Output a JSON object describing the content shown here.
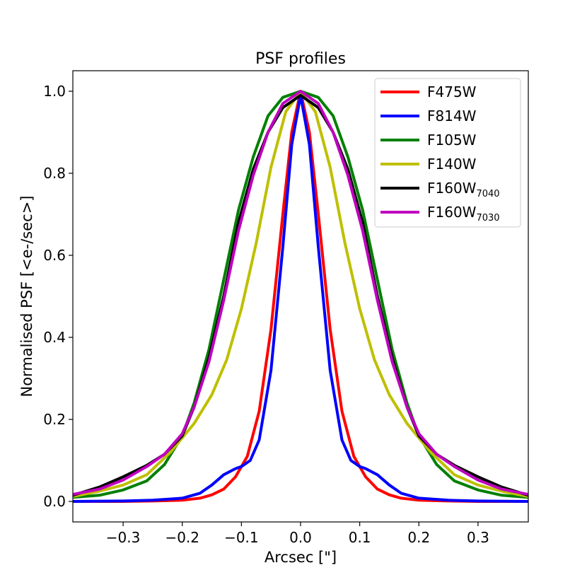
{
  "chart_data": {
    "type": "line",
    "title": "PSF profiles",
    "xlabel": "Arcsec [\"]",
    "ylabel": "Normalised PSF [<e-/sec>]",
    "xlim": [
      -0.385,
      0.385
    ],
    "ylim": [
      -0.05,
      1.05
    ],
    "xticks": [
      -0.3,
      -0.2,
      -0.1,
      0.0,
      0.1,
      0.2,
      0.3
    ],
    "xtick_labels": [
      "−0.3",
      "−0.2",
      "−0.1",
      "0.0",
      "0.1",
      "0.2",
      "0.3"
    ],
    "yticks": [
      0.0,
      0.2,
      0.4,
      0.6,
      0.8,
      1.0
    ],
    "ytick_labels": [
      "0.0",
      "0.2",
      "0.4",
      "0.6",
      "0.8",
      "1.0"
    ],
    "grid": false,
    "legend_position": "top-right",
    "series": [
      {
        "name": "F475W",
        "label_main": "F475W",
        "label_sub": "",
        "color": "#ff0000",
        "x": [
          -0.385,
          -0.3,
          -0.25,
          -0.2,
          -0.17,
          -0.15,
          -0.13,
          -0.11,
          -0.09,
          -0.07,
          -0.05,
          -0.03,
          -0.015,
          0.0,
          0.015,
          0.03,
          0.05,
          0.07,
          0.09,
          0.11,
          0.13,
          0.15,
          0.17,
          0.2,
          0.25,
          0.3,
          0.385
        ],
        "y": [
          0.0,
          0.0,
          0.001,
          0.003,
          0.008,
          0.016,
          0.03,
          0.06,
          0.11,
          0.22,
          0.42,
          0.7,
          0.9,
          1.0,
          0.9,
          0.7,
          0.42,
          0.22,
          0.11,
          0.06,
          0.03,
          0.016,
          0.008,
          0.003,
          0.001,
          0.0,
          0.0
        ]
      },
      {
        "name": "F814W",
        "label_main": "F814W",
        "label_sub": "",
        "color": "#0000ff",
        "x": [
          -0.385,
          -0.3,
          -0.25,
          -0.2,
          -0.17,
          -0.15,
          -0.13,
          -0.11,
          -0.1,
          -0.085,
          -0.07,
          -0.05,
          -0.03,
          -0.015,
          0.0,
          0.015,
          0.03,
          0.05,
          0.07,
          0.085,
          0.1,
          0.11,
          0.13,
          0.15,
          0.17,
          0.2,
          0.25,
          0.3,
          0.385
        ],
        "y": [
          0.0,
          0.001,
          0.003,
          0.008,
          0.02,
          0.04,
          0.065,
          0.08,
          0.085,
          0.1,
          0.15,
          0.32,
          0.62,
          0.87,
          0.99,
          0.87,
          0.62,
          0.32,
          0.15,
          0.1,
          0.085,
          0.08,
          0.065,
          0.04,
          0.02,
          0.008,
          0.003,
          0.001,
          0.0
        ]
      },
      {
        "name": "F105W",
        "label_main": "F105W",
        "label_sub": "",
        "color": "#008000",
        "x": [
          -0.385,
          -0.34,
          -0.3,
          -0.26,
          -0.23,
          -0.2,
          -0.18,
          -0.155,
          -0.13,
          -0.105,
          -0.08,
          -0.055,
          -0.03,
          0.0,
          0.03,
          0.055,
          0.08,
          0.105,
          0.13,
          0.155,
          0.18,
          0.2,
          0.23,
          0.26,
          0.3,
          0.34,
          0.385
        ],
        "y": [
          0.01,
          0.015,
          0.028,
          0.05,
          0.09,
          0.16,
          0.24,
          0.37,
          0.54,
          0.71,
          0.84,
          0.94,
          0.985,
          1.0,
          0.985,
          0.94,
          0.84,
          0.71,
          0.54,
          0.37,
          0.24,
          0.16,
          0.09,
          0.05,
          0.028,
          0.015,
          0.01
        ]
      },
      {
        "name": "F140W",
        "label_main": "F140W",
        "label_sub": "",
        "color": "#bfbf00",
        "x": [
          -0.385,
          -0.34,
          -0.3,
          -0.26,
          -0.22,
          -0.18,
          -0.15,
          -0.125,
          -0.1,
          -0.075,
          -0.05,
          -0.025,
          0.0,
          0.025,
          0.05,
          0.075,
          0.1,
          0.125,
          0.15,
          0.18,
          0.22,
          0.26,
          0.3,
          0.34,
          0.385
        ],
        "y": [
          0.012,
          0.025,
          0.04,
          0.065,
          0.12,
          0.19,
          0.26,
          0.345,
          0.47,
          0.63,
          0.815,
          0.95,
          1.0,
          0.95,
          0.815,
          0.63,
          0.47,
          0.345,
          0.26,
          0.19,
          0.12,
          0.065,
          0.04,
          0.025,
          0.012
        ]
      },
      {
        "name": "F160W7040",
        "label_main": "F160W",
        "label_sub": "7040",
        "color": "#000000",
        "x": [
          -0.385,
          -0.34,
          -0.3,
          -0.26,
          -0.23,
          -0.2,
          -0.18,
          -0.155,
          -0.13,
          -0.105,
          -0.08,
          -0.055,
          -0.03,
          0.0,
          0.03,
          0.055,
          0.08,
          0.105,
          0.13,
          0.155,
          0.18,
          0.2,
          0.23,
          0.26,
          0.3,
          0.34,
          0.385
        ],
        "y": [
          0.015,
          0.035,
          0.06,
          0.088,
          0.115,
          0.16,
          0.23,
          0.35,
          0.5,
          0.68,
          0.81,
          0.9,
          0.96,
          0.99,
          0.96,
          0.9,
          0.81,
          0.68,
          0.5,
          0.35,
          0.23,
          0.16,
          0.115,
          0.088,
          0.06,
          0.035,
          0.015
        ]
      },
      {
        "name": "F160W7030",
        "label_main": "F160W",
        "label_sub": "7030",
        "color": "#bf00bf",
        "x": [
          -0.385,
          -0.34,
          -0.3,
          -0.26,
          -0.23,
          -0.2,
          -0.18,
          -0.155,
          -0.13,
          -0.105,
          -0.08,
          -0.055,
          -0.03,
          0.0,
          0.03,
          0.055,
          0.08,
          0.105,
          0.13,
          0.155,
          0.18,
          0.2,
          0.23,
          0.26,
          0.3,
          0.34,
          0.385
        ],
        "y": [
          0.017,
          0.03,
          0.052,
          0.085,
          0.115,
          0.165,
          0.23,
          0.34,
          0.49,
          0.66,
          0.795,
          0.9,
          0.97,
          1.0,
          0.97,
          0.9,
          0.795,
          0.66,
          0.49,
          0.34,
          0.23,
          0.165,
          0.115,
          0.085,
          0.052,
          0.03,
          0.017
        ]
      }
    ]
  }
}
